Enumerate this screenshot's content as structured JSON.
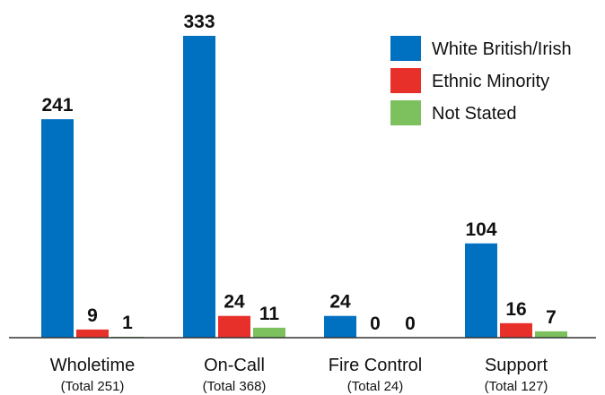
{
  "chart_data": {
    "type": "bar",
    "categories": [
      "Wholetime",
      "On-Call",
      "Fire Control",
      "Support"
    ],
    "category_totals": [
      "(Total 251)",
      "(Total 368)",
      "(Total 24)",
      "(Total 127)"
    ],
    "series": [
      {
        "name": "White British/Irish",
        "color": "#0070C0",
        "values": [
          241,
          333,
          24,
          104
        ]
      },
      {
        "name": "Ethnic Minority",
        "color": "#E8302A",
        "values": [
          9,
          24,
          0,
          16
        ]
      },
      {
        "name": "Not Stated",
        "color": "#7CC15E",
        "values": [
          1,
          11,
          0,
          7
        ]
      }
    ],
    "ylim": [
      0,
      333
    ],
    "grid": false,
    "legend_position": "top-right",
    "title": "",
    "xlabel": "",
    "ylabel": ""
  }
}
